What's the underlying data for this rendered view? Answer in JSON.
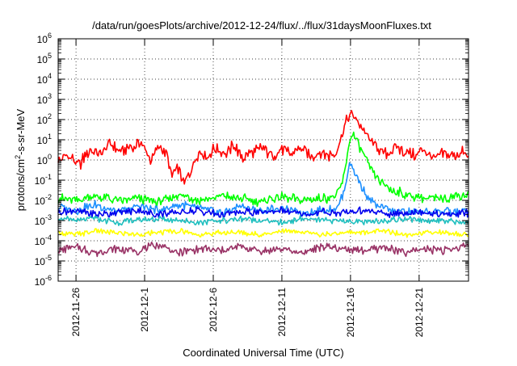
{
  "chart_data": {
    "type": "line",
    "title": "/data/run/goesPlots/archive/2012-12-24/flux/../flux/31daysMoonFluxes.txt",
    "xlabel": "Coordinated Universal Time (UTC)",
    "ylabel_main": "protons/cm",
    "ylabel_sup": "2",
    "ylabel_rest": "-s-sr-MeV",
    "x_unit": "days since 2012-11-24",
    "xlim": [
      0.7,
      30.6
    ],
    "y_scale": "log",
    "ylim_exp": [
      -6,
      6
    ],
    "x_ticks": [
      {
        "label": "2012-11-26",
        "value": 2
      },
      {
        "label": "2012-12-1",
        "value": 7
      },
      {
        "label": "2012-12-6",
        "value": 12
      },
      {
        "label": "2012-12-11",
        "value": 17
      },
      {
        "label": "2012-12-16",
        "value": 22
      },
      {
        "label": "2012-12-21",
        "value": 27
      }
    ],
    "y_ticks": [
      {
        "base": "10",
        "exp": "-6",
        "value": -6
      },
      {
        "base": "10",
        "exp": "-5",
        "value": -5
      },
      {
        "base": "10",
        "exp": "-4",
        "value": -4
      },
      {
        "base": "10",
        "exp": "-3",
        "value": -3
      },
      {
        "base": "10",
        "exp": "-2",
        "value": -2
      },
      {
        "base": "10",
        "exp": "-1",
        "value": -1
      },
      {
        "base": "10",
        "exp": "0",
        "value": 0
      },
      {
        "base": "10",
        "exp": "1",
        "value": 1
      },
      {
        "base": "10",
        "exp": "2",
        "value": 2
      },
      {
        "base": "10",
        "exp": "3",
        "value": 3
      },
      {
        "base": "10",
        "exp": "4",
        "value": 4
      },
      {
        "base": "10",
        "exp": "5",
        "value": 5
      },
      {
        "base": "10",
        "exp": "6",
        "value": 6
      }
    ],
    "grid": true,
    "series": [
      {
        "color": "#ff0000",
        "x": [
          0.7,
          1.5,
          2.2,
          3.0,
          3.8,
          4.5,
          5.2,
          6.0,
          6.7,
          7.4,
          8.0,
          8.6,
          9.0,
          9.4,
          9.9,
          10.4,
          11.0,
          11.6,
          12.2,
          12.9,
          13.5,
          14.2,
          14.9,
          15.6,
          16.3,
          17.0,
          17.7,
          18.4,
          19.1,
          19.8,
          20.4,
          20.9,
          21.3,
          21.6,
          21.9,
          22.2,
          22.5,
          22.8,
          23.1,
          23.4,
          23.8,
          24.2,
          24.7,
          25.3,
          26.0,
          26.7,
          27.4,
          28.1,
          28.8,
          29.5,
          30.2,
          30.6
        ],
        "y_exp": [
          -0.1,
          0.2,
          -0.3,
          0.5,
          0.3,
          0.8,
          0.4,
          0.6,
          0.9,
          0.0,
          0.7,
          0.3,
          -0.8,
          -0.4,
          -1.2,
          -0.5,
          0.5,
          0.2,
          0.6,
          0.3,
          0.7,
          0.1,
          0.4,
          0.6,
          0.2,
          0.5,
          0.3,
          0.6,
          0.1,
          0.4,
          0.2,
          0.3,
          1.1,
          1.7,
          2.3,
          2.2,
          1.9,
          1.6,
          1.3,
          1.0,
          0.7,
          0.5,
          0.3,
          0.6,
          0.4,
          0.2,
          0.5,
          0.0,
          0.3,
          0.2,
          0.4,
          0.1
        ]
      },
      {
        "color": "#00ff00",
        "x": [
          0.7,
          2.0,
          3.5,
          5.0,
          6.5,
          8.0,
          9.5,
          11.0,
          12.5,
          14.0,
          15.5,
          17.0,
          18.5,
          20.0,
          21.0,
          21.5,
          21.8,
          22.1,
          22.4,
          22.7,
          23.0,
          23.3,
          23.7,
          24.2,
          25.0,
          26.5,
          28.0,
          29.5,
          30.6
        ],
        "y_exp": [
          -1.9,
          -2.0,
          -1.8,
          -2.0,
          -1.9,
          -2.1,
          -1.7,
          -2.0,
          -1.8,
          -1.9,
          -2.1,
          -1.8,
          -2.0,
          -1.9,
          -1.8,
          -0.9,
          0.4,
          1.3,
          1.1,
          0.6,
          0.2,
          -0.3,
          -0.7,
          -1.1,
          -1.5,
          -1.8,
          -1.9,
          -1.8,
          -1.7
        ]
      },
      {
        "color": "#1e90ff",
        "x": [
          0.7,
          2.0,
          3.5,
          5.0,
          6.5,
          8.0,
          9.5,
          11.0,
          12.5,
          14.0,
          15.5,
          17.0,
          18.5,
          20.0,
          21.0,
          21.5,
          21.9,
          22.2,
          22.5,
          22.8,
          23.1,
          23.5,
          24.0,
          25.0,
          26.5,
          28.0,
          29.5,
          30.6
        ],
        "y_exp": [
          -2.3,
          -2.5,
          -2.2,
          -2.6,
          -2.3,
          -2.5,
          -2.2,
          -2.4,
          -2.6,
          -2.3,
          -2.5,
          -2.4,
          -2.6,
          -2.5,
          -2.4,
          -1.6,
          -0.2,
          -0.4,
          -0.9,
          -1.3,
          -1.7,
          -2.0,
          -2.3,
          -2.5,
          -2.6,
          -2.5,
          -2.6,
          -2.5
        ]
      },
      {
        "color": "#0000ee",
        "x": [
          0.7,
          2.0,
          3.5,
          5.0,
          6.5,
          8.0,
          9.5,
          11.0,
          12.5,
          14.0,
          15.5,
          17.0,
          18.5,
          20.0,
          21.5,
          23.0,
          24.5,
          26.0,
          27.5,
          29.0,
          30.6
        ],
        "y_exp": [
          -2.6,
          -2.5,
          -2.7,
          -2.6,
          -2.5,
          -2.7,
          -2.6,
          -2.5,
          -2.7,
          -2.6,
          -2.6,
          -2.5,
          -2.7,
          -2.6,
          -2.6,
          -2.5,
          -2.7,
          -2.6,
          -2.6,
          -2.7,
          -2.6
        ]
      },
      {
        "color": "#20c0c0",
        "x": [
          0.7,
          2.0,
          3.5,
          5.0,
          6.5,
          8.0,
          9.5,
          11.0,
          12.5,
          14.0,
          15.5,
          17.0,
          18.5,
          20.0,
          21.5,
          23.0,
          24.5,
          26.0,
          27.5,
          29.0,
          30.6
        ],
        "y_exp": [
          -2.9,
          -3.0,
          -2.9,
          -3.1,
          -3.0,
          -2.9,
          -3.0,
          -3.1,
          -3.0,
          -2.9,
          -3.0,
          -3.1,
          -2.9,
          -3.0,
          -3.0,
          -3.1,
          -3.0,
          -2.9,
          -3.0,
          -3.0,
          -3.1
        ]
      },
      {
        "color": "#ffff00",
        "x": [
          0.7,
          2.0,
          3.5,
          5.0,
          6.5,
          8.0,
          9.5,
          11.0,
          12.5,
          14.0,
          15.5,
          17.0,
          18.5,
          20.0,
          21.5,
          23.0,
          24.5,
          26.0,
          27.5,
          29.0,
          30.6
        ],
        "y_exp": [
          -3.6,
          -3.7,
          -3.5,
          -3.6,
          -3.7,
          -3.6,
          -3.5,
          -3.7,
          -3.6,
          -3.6,
          -3.7,
          -3.5,
          -3.6,
          -3.7,
          -3.6,
          -3.6,
          -3.5,
          -3.7,
          -3.6,
          -3.6,
          -3.7
        ]
      },
      {
        "color": "#993366",
        "x": [
          0.7,
          2.0,
          3.5,
          5.0,
          6.5,
          8.0,
          9.5,
          11.0,
          12.5,
          14.0,
          15.5,
          17.0,
          18.5,
          20.0,
          21.5,
          23.0,
          24.5,
          26.0,
          27.5,
          29.0,
          30.6
        ],
        "y_exp": [
          -4.5,
          -4.3,
          -4.6,
          -4.4,
          -4.5,
          -4.2,
          -4.6,
          -4.4,
          -4.5,
          -4.3,
          -4.5,
          -4.4,
          -4.6,
          -4.3,
          -4.4,
          -4.5,
          -4.3,
          -4.6,
          -4.4,
          -4.5,
          -4.2
        ]
      }
    ]
  }
}
